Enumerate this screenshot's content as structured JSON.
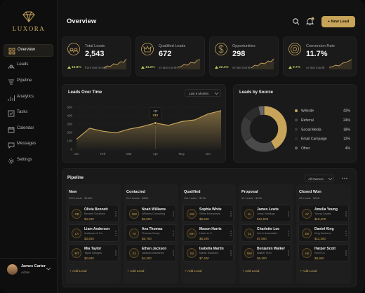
{
  "sidebar": {
    "brand": "LUXORA",
    "nav": [
      "Overview",
      "Leads",
      "Pipeline",
      "Analytics",
      "Tasks",
      "Calendar",
      "Messages",
      "Settings"
    ],
    "user": {
      "name": "James Carter",
      "role": "Admin"
    }
  },
  "header": {
    "title": "Overview",
    "button": "+ New Lead"
  },
  "stats": [
    {
      "label": "Total Leads",
      "value": "2,543",
      "change": "16.8%",
      "note": "from last month"
    },
    {
      "label": "Qualified Leads",
      "value": "672",
      "change": "14.2%",
      "note": "vs last month"
    },
    {
      "label": "Opportunities",
      "value": "298",
      "change": "22.4%",
      "note": "vs last month"
    },
    {
      "label": "Conversion Rate",
      "value": "11.7%",
      "change": "9.7%",
      "note": "vs last month"
    }
  ],
  "chart_data": [
    {
      "type": "area",
      "title": "Leads Over Time",
      "period": "Last 6 Months",
      "categories": [
        "Jan",
        null,
        "Feb",
        null,
        "Mar",
        null,
        "Apr",
        null,
        "May",
        null,
        "Jun",
        null
      ],
      "values": [
        120,
        250,
        215,
        195,
        240,
        270,
        312,
        285,
        330,
        350,
        420,
        460
      ],
      "color": "#c8a45a",
      "ylim": [
        0,
        500
      ],
      "yticks": [
        0,
        100,
        200,
        300,
        400,
        500
      ],
      "grid": true,
      "highlight": 6
    },
    {
      "type": "pie",
      "title": "Leads by Source",
      "donut": true,
      "categories": [
        "Website",
        "Referral",
        "Social Media",
        "Email Campaign",
        "Other"
      ],
      "values": [
        42,
        24,
        18,
        12,
        4
      ],
      "value_labels": [
        "42%",
        "24%",
        "18%",
        "12%",
        "4%"
      ],
      "colors": [
        "#c8a45a",
        "#4a4a4a",
        "#3a3a3a",
        "#2c2c2c",
        "#666666"
      ]
    }
  ],
  "pipeline": {
    "title": "Pipeline",
    "filter": "All Owners",
    "add_label": "+ Add Lead",
    "columns": [
      {
        "name": "New",
        "summary": "320 Leads · $128K",
        "leads": [
          {
            "initials": "OB",
            "name": "Olivia Bennett",
            "company": "Bennett Solutions",
            "amount": "$4,200"
          },
          {
            "initials": "LA",
            "name": "Liam Anderson",
            "company": "Anderson & Co.",
            "amount": "$3,500"
          },
          {
            "initials": "MT",
            "name": "Mia Taylor",
            "company": "Taylor Designs",
            "amount": "$2,800"
          }
        ]
      },
      {
        "name": "Contacted",
        "summary": "214 Leads · $86K",
        "leads": [
          {
            "initials": "NW",
            "name": "Noah Williams",
            "company": "Williams Consulting",
            "amount": "$6,800"
          },
          {
            "initials": "AT",
            "name": "Ava Thomas",
            "company": "Thomas Group",
            "amount": "$5,700"
          },
          {
            "initials": "EJ",
            "name": "Ethan Jackson",
            "company": "Jackson Industries",
            "amount": "$4,300"
          }
        ]
      },
      {
        "name": "Qualified",
        "summary": "115 Leads · $74K",
        "leads": [
          {
            "initials": "SW",
            "name": "Sophia White",
            "company": "White Enterprises",
            "amount": "$9,500"
          },
          {
            "initials": "MH",
            "name": "Mason Harris",
            "company": "Harris LLC",
            "amount": "$8,200"
          },
          {
            "initials": "IM",
            "name": "Isabella Martin",
            "company": "Martin Solutions",
            "amount": "$7,400"
          }
        ]
      },
      {
        "name": "Proposal",
        "summary": "41 Leads · $32K",
        "leads": [
          {
            "initials": "JL",
            "name": "James Lewis",
            "company": "Lewis Holdings",
            "amount": "$12,500"
          },
          {
            "initials": "CL",
            "name": "Charlotte Lee",
            "company": "Lee & Associates",
            "amount": "$7,800"
          },
          {
            "initials": "BW",
            "name": "Benjamin Walker",
            "company": "Walker Tech",
            "amount": "$6,300"
          }
        ]
      },
      {
        "name": "Closed Won",
        "summary": "38 Leads · $26K",
        "leads": [
          {
            "initials": "AY",
            "name": "Amelia Young",
            "company": "Young Capital",
            "amount": "$18,400"
          },
          {
            "initials": "DK",
            "name": "Daniel King",
            "company": "King Ventures",
            "amount": "$11,300"
          },
          {
            "initials": "HS",
            "name": "Harper Scott",
            "company": "Scott Co.",
            "amount": "$8,900"
          }
        ]
      }
    ]
  }
}
